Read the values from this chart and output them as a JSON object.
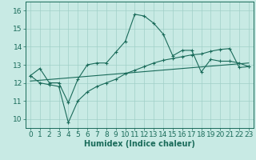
{
  "xlabel": "Humidex (Indice chaleur)",
  "background_color": "#c8eae4",
  "grid_color": "#a0cfc8",
  "line_color": "#1a6b5a",
  "xlim": [
    -0.5,
    23.5
  ],
  "ylim": [
    9.5,
    16.5
  ],
  "yticks": [
    10,
    11,
    12,
    13,
    14,
    15,
    16
  ],
  "xticks": [
    0,
    1,
    2,
    3,
    4,
    5,
    6,
    7,
    8,
    9,
    10,
    11,
    12,
    13,
    14,
    15,
    16,
    17,
    18,
    19,
    20,
    21,
    22,
    23
  ],
  "series1_x": [
    0,
    1,
    2,
    3,
    4,
    5,
    6,
    7,
    8,
    9,
    10,
    11,
    12,
    13,
    14,
    15,
    16,
    17,
    18,
    19,
    20,
    21,
    22,
    23
  ],
  "series1_y": [
    12.4,
    12.8,
    12.0,
    12.0,
    10.9,
    12.2,
    13.0,
    13.1,
    13.1,
    13.7,
    14.3,
    15.8,
    15.7,
    15.3,
    14.7,
    13.5,
    13.8,
    13.8,
    12.6,
    13.3,
    13.2,
    13.2,
    13.1,
    12.9
  ],
  "series2_x": [
    0,
    23
  ],
  "series2_y": [
    12.1,
    13.1
  ],
  "series3_x": [
    0,
    1,
    2,
    3,
    4,
    5,
    6,
    7,
    8,
    9,
    10,
    11,
    12,
    13,
    14,
    15,
    16,
    17,
    18,
    19,
    20,
    21,
    22,
    23
  ],
  "series3_y": [
    12.4,
    12.0,
    11.9,
    11.8,
    9.8,
    11.0,
    11.5,
    11.8,
    12.0,
    12.2,
    12.5,
    12.7,
    12.9,
    13.1,
    13.25,
    13.35,
    13.45,
    13.55,
    13.6,
    13.75,
    13.85,
    13.9,
    12.85,
    12.9
  ],
  "fontsize_xlabel": 7,
  "tick_fontsize": 6.5
}
